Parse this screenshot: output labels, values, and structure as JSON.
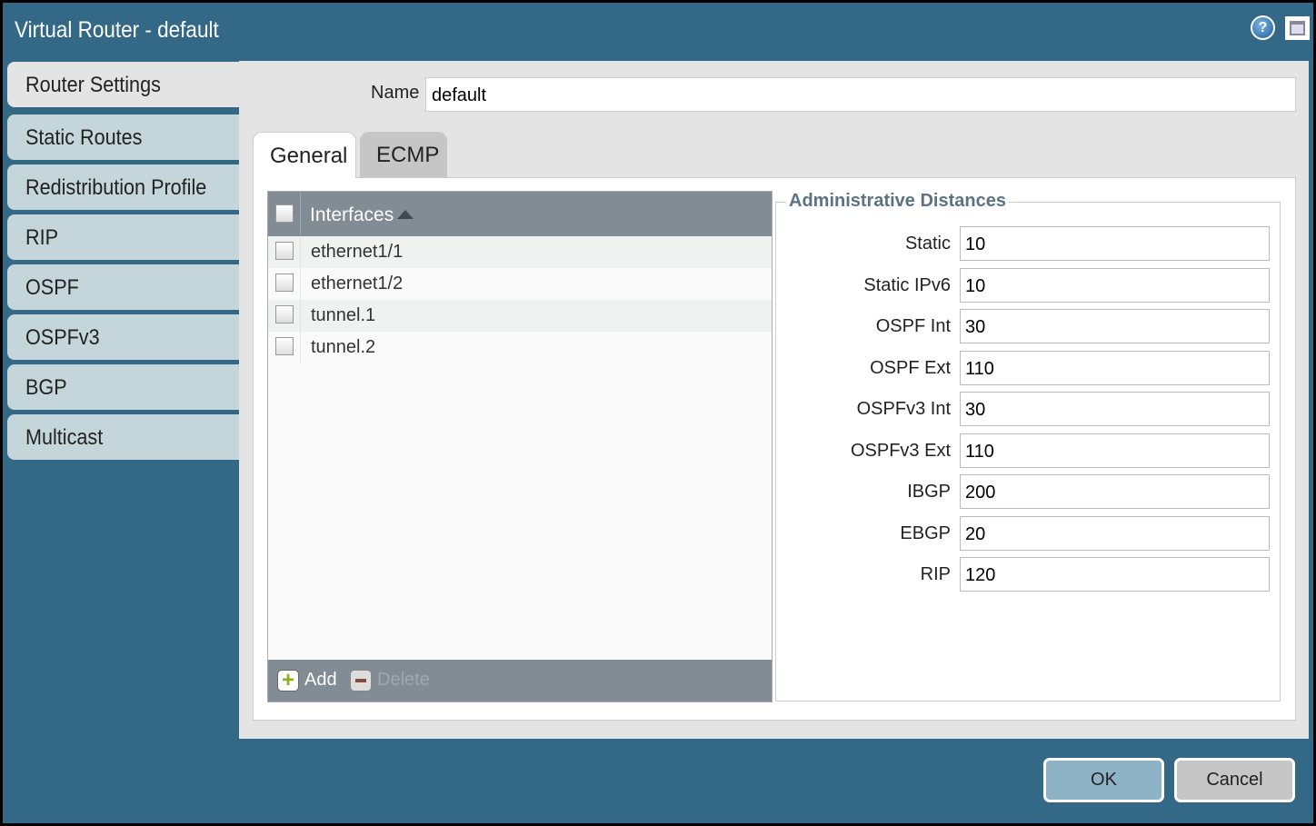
{
  "window": {
    "title": "Virtual Router - default",
    "help_icon": "help-icon",
    "maximize_icon": "maximize-icon"
  },
  "sidebar": {
    "items": [
      {
        "label": "Router Settings",
        "active": true
      },
      {
        "label": "Static Routes"
      },
      {
        "label": "Redistribution Profile"
      },
      {
        "label": "RIP"
      },
      {
        "label": "OSPF"
      },
      {
        "label": "OSPFv3"
      },
      {
        "label": "BGP"
      },
      {
        "label": "Multicast"
      }
    ]
  },
  "name": {
    "label": "Name",
    "value": "default"
  },
  "tabs": [
    {
      "label": "General",
      "active": true
    },
    {
      "label": "ECMP"
    }
  ],
  "interfaces": {
    "header": "Interfaces",
    "sort": "ascending",
    "rows": [
      "ethernet1/1",
      "ethernet1/2",
      "tunnel.1",
      "tunnel.2"
    ],
    "add_label": "Add",
    "delete_label": "Delete"
  },
  "admin": {
    "title": "Administrative Distances",
    "fields": [
      {
        "label": "Static",
        "value": "10"
      },
      {
        "label": "Static IPv6",
        "value": "10"
      },
      {
        "label": "OSPF Int",
        "value": "30"
      },
      {
        "label": "OSPF Ext",
        "value": "110"
      },
      {
        "label": "OSPFv3 Int",
        "value": "30"
      },
      {
        "label": "OSPFv3 Ext",
        "value": "110"
      },
      {
        "label": "IBGP",
        "value": "200"
      },
      {
        "label": "EBGP",
        "value": "20"
      },
      {
        "label": "RIP",
        "value": "120"
      }
    ]
  },
  "buttons": {
    "ok": "OK",
    "cancel": "Cancel"
  },
  "colors": {
    "titlebar": "#336887",
    "sidebar_item": "#c5d6da",
    "grid_header": "#828c94",
    "ok_button": "#8fb3c6",
    "legend": "#5b7384"
  }
}
